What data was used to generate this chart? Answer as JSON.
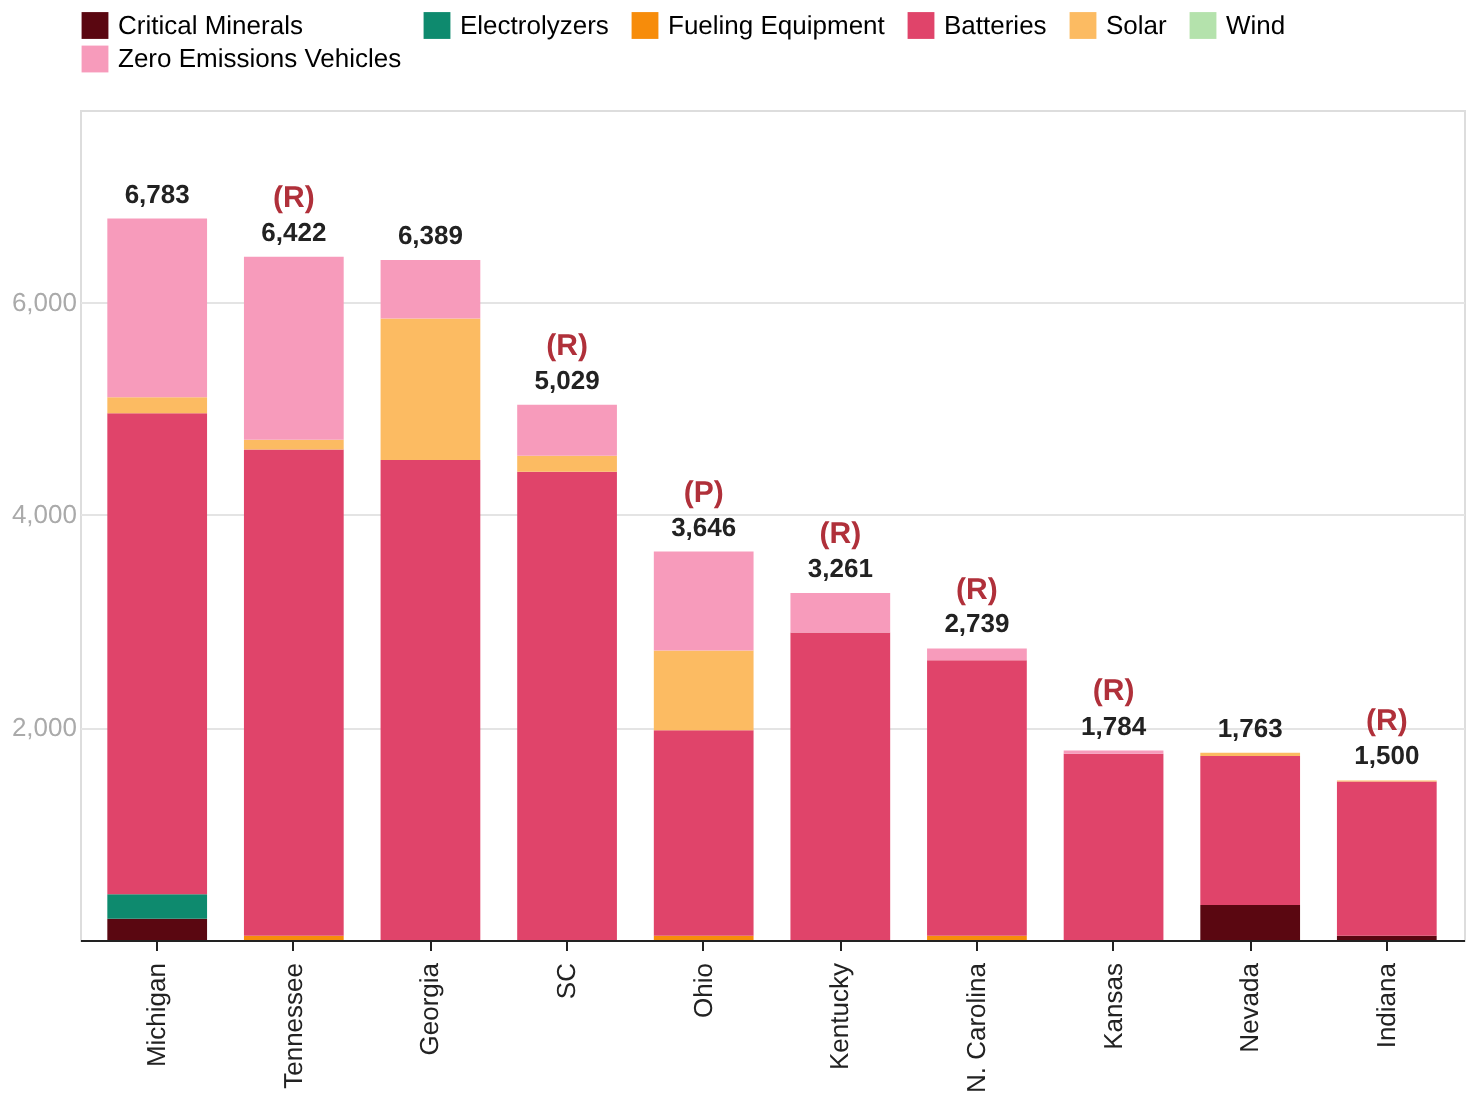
{
  "chart_data": {
    "type": "bar",
    "stacked": true,
    "legend": "top",
    "grid": "y",
    "categories": [
      "Michigan",
      "Tennessee",
      "Georgia",
      "SC",
      "Ohio",
      "Kentucky",
      "N. Carolina",
      "Kansas",
      "Nevada",
      "Indiana"
    ],
    "series": [
      {
        "name": "Critical Minerals",
        "color": "#5a0711",
        "values": [
          200,
          0,
          0,
          0,
          0,
          0,
          0,
          0,
          330,
          40
        ]
      },
      {
        "name": "Electrolyzers",
        "color": "#0e8a6e",
        "values": [
          230,
          0,
          0,
          0,
          0,
          0,
          0,
          0,
          0,
          0
        ]
      },
      {
        "name": "Fueling Equipment",
        "color": "#f78c0a",
        "values": [
          0,
          40,
          0,
          0,
          40,
          0,
          40,
          0,
          0,
          0
        ]
      },
      {
        "name": "Batteries",
        "color": "#e0446a",
        "values": [
          4520,
          4570,
          4510,
          4400,
          1930,
          2890,
          2590,
          1750,
          1400,
          1450
        ]
      },
      {
        "name": "Solar",
        "color": "#fcbb62",
        "values": [
          150,
          90,
          1330,
          150,
          750,
          0,
          0,
          0,
          30,
          10
        ]
      },
      {
        "name": "Wind",
        "color": "#b4e2ac",
        "values": [
          0,
          0,
          0,
          0,
          0,
          0,
          0,
          0,
          0,
          0
        ]
      },
      {
        "name": "Zero Emissions Vehicles",
        "color": "#f79bbb",
        "values": [
          1680,
          1720,
          550,
          479,
          930,
          370,
          110,
          30,
          0,
          0
        ]
      }
    ],
    "totals": [
      "6,783",
      "6,422",
      "6,389",
      "5,029",
      "3,646",
      "3,261",
      "2,739",
      "1,784",
      "1,763",
      "1,500"
    ],
    "ylim": [
      0,
      7800
    ],
    "yticks": [
      {
        "value": 0,
        "label": null
      },
      {
        "value": 2000,
        "label": "2,000"
      },
      {
        "value": 4000,
        "label": "4,000"
      },
      {
        "value": 6000,
        "label": "6,000"
      }
    ],
    "annotations": [
      {
        "text": "(R)",
        "x": "Tennessee",
        "y": 6422
      },
      {
        "text": "(R)",
        "x": "SC",
        "y": 5029
      },
      {
        "text": "(P)",
        "x": "Ohio",
        "y": 3646
      },
      {
        "text": "(R)",
        "x": "Kentucky",
        "y": 3261
      },
      {
        "text": "(R)",
        "x": "N. Carolina",
        "y": 2739
      },
      {
        "text": "(R)",
        "x": "Kansas",
        "y": 1784
      },
      {
        "text": "(R)",
        "x": "Indiana",
        "y": 1500
      }
    ]
  }
}
